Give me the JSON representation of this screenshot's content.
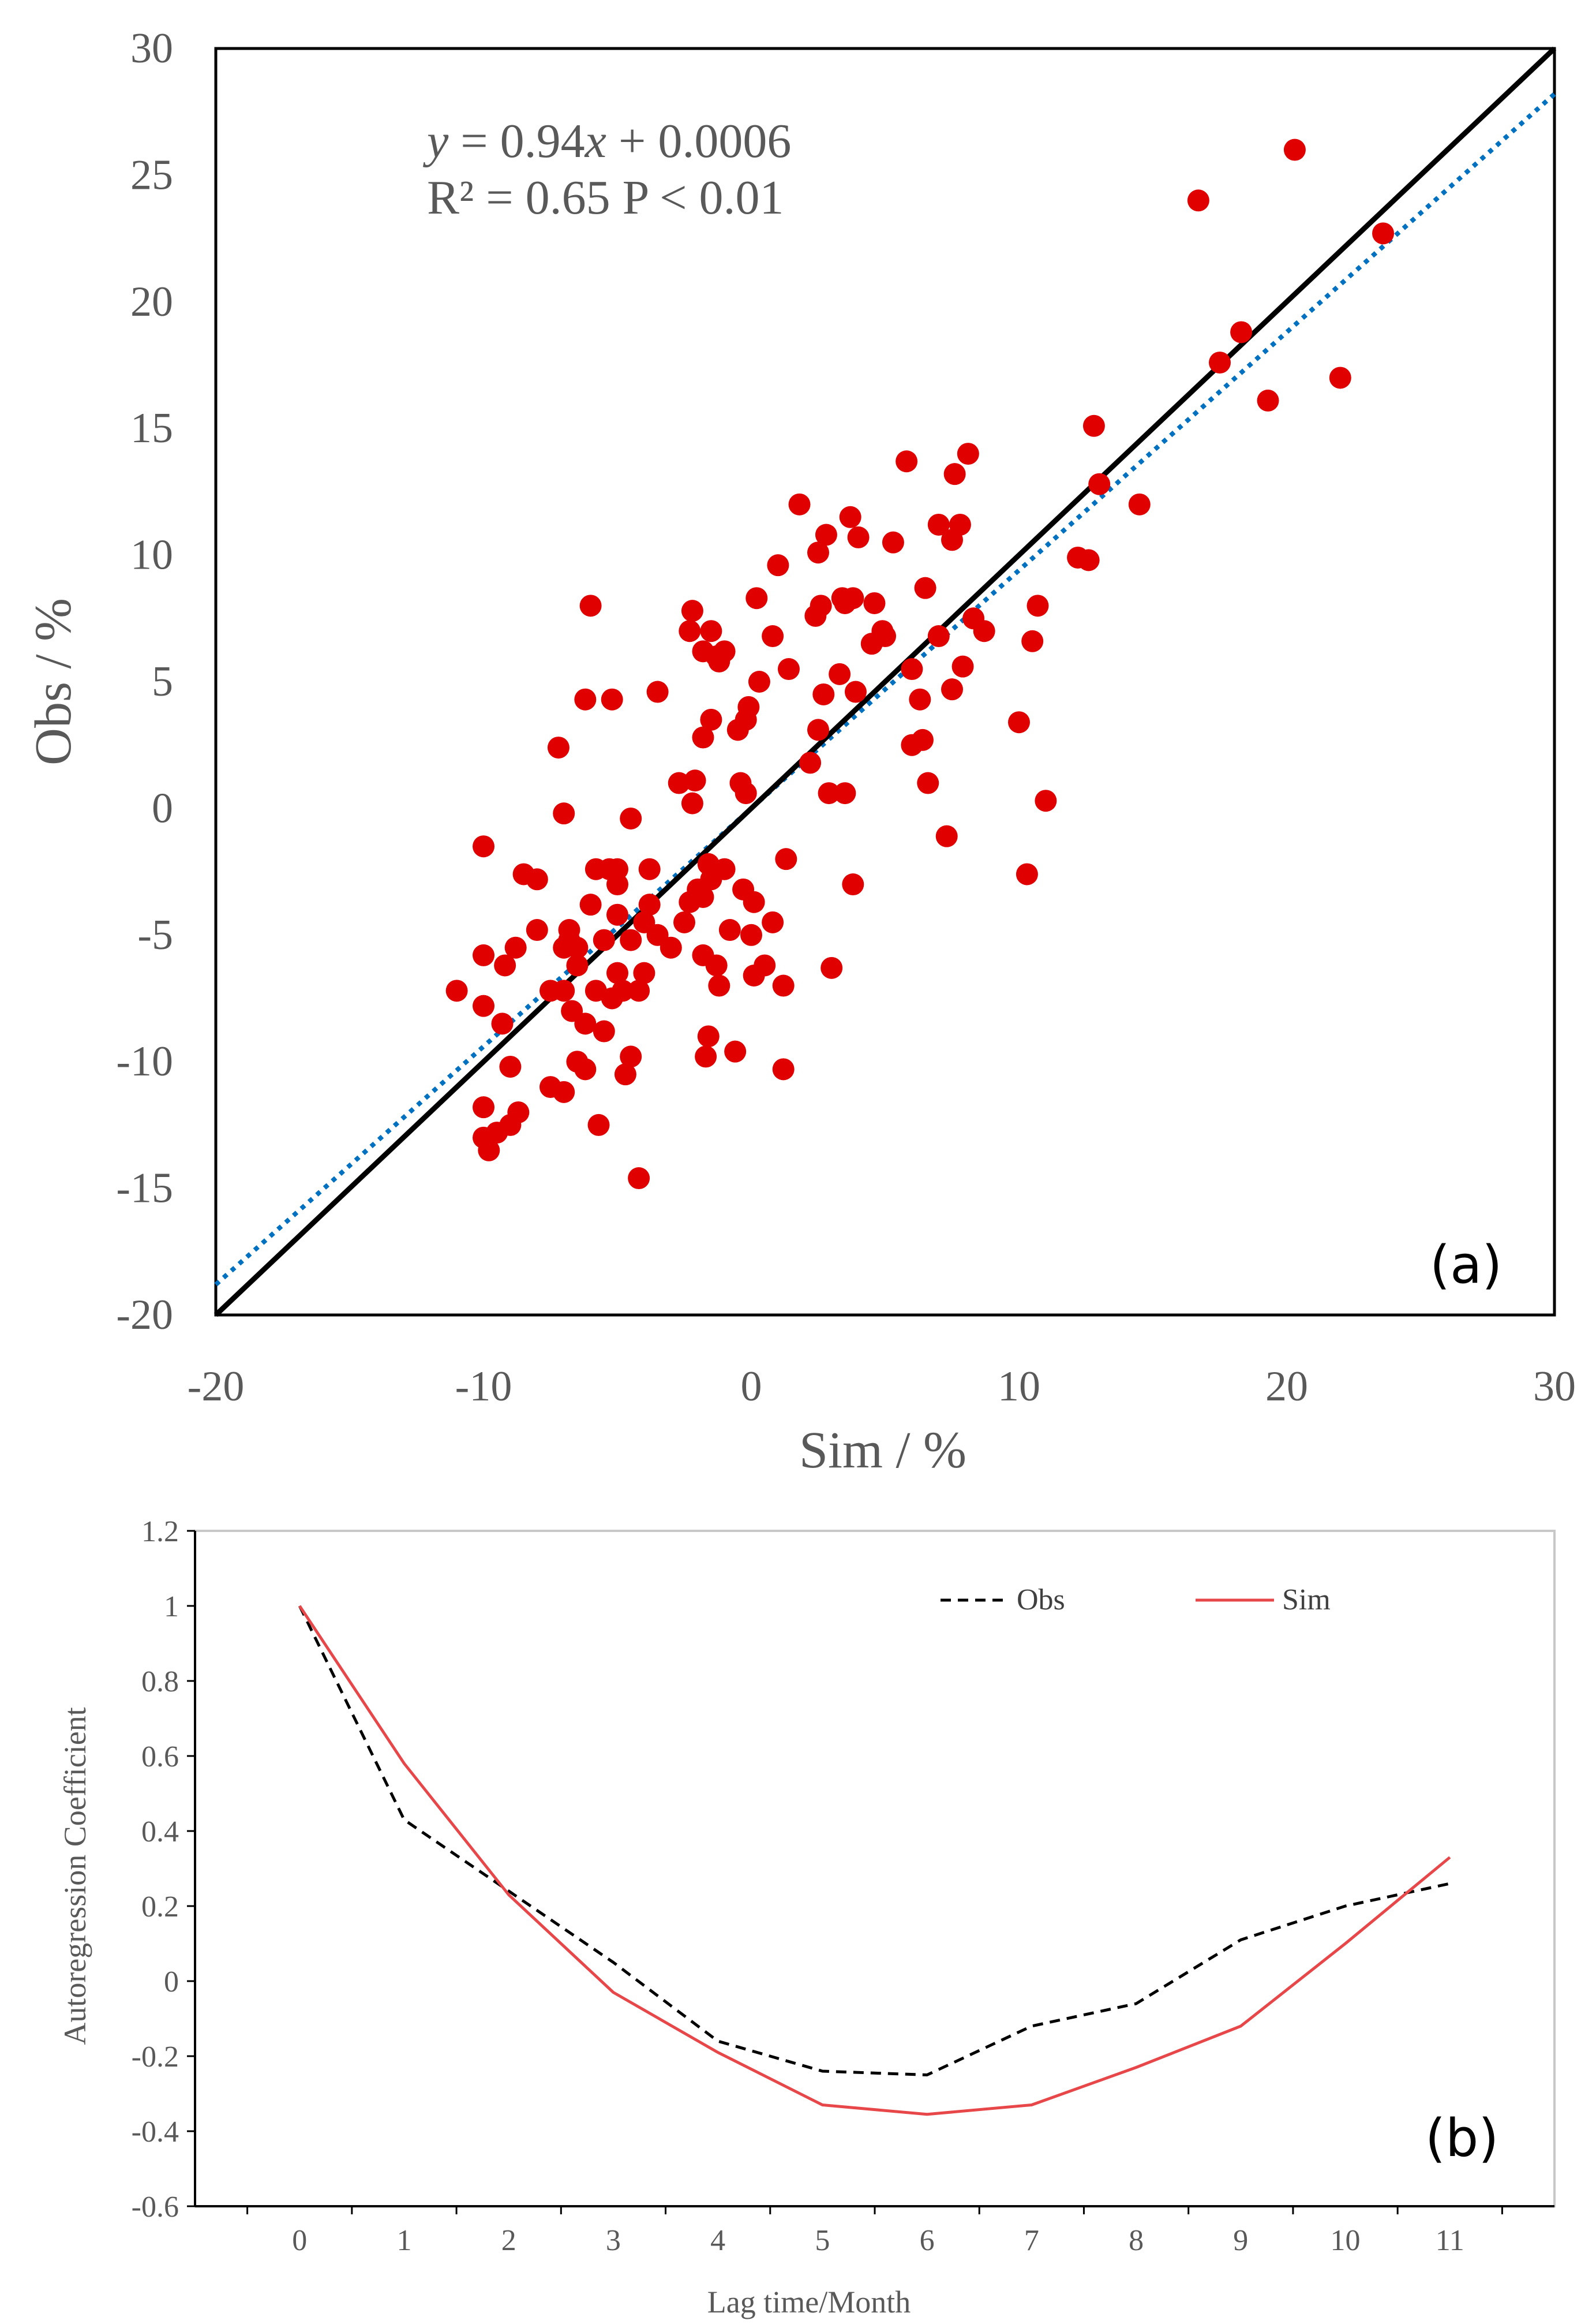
{
  "chart_data": [
    {
      "type": "scatter",
      "panel_label": "(a)",
      "xlabel": "Sim / %",
      "ylabel": "Obs / %",
      "xlim": [
        -20,
        30
      ],
      "ylim": [
        -20,
        30
      ],
      "xticks": [
        -20,
        -10,
        0,
        10,
        20,
        30
      ],
      "yticks": [
        -20,
        -15,
        -10,
        -5,
        0,
        5,
        10,
        15,
        20,
        25,
        30
      ],
      "xtick_labels": [
        "-20",
        "-10",
        "0",
        "10",
        "20",
        "30"
      ],
      "ytick_labels": [
        "-20",
        "-15",
        "-10",
        "-5",
        "0",
        "5",
        "10",
        "15",
        "20",
        "25",
        "30"
      ],
      "equation": "y = 0.94x + 0.0006",
      "equation_italic": "y",
      "equation_rest_1": " = 0.94",
      "equation_italic_x": "x",
      "equation_rest_2": " + 0.0006",
      "r2_text": "R² = 0.65  P < 0.01",
      "one_to_one_line": {
        "from": [
          -20,
          -20
        ],
        "to": [
          30,
          30
        ],
        "color": "#000000"
      },
      "fit_line": {
        "slope": 0.94,
        "intercept": 0.0006,
        "color": "#0070C0",
        "style": "dotted"
      },
      "point_color": "#E00000",
      "points": [
        [
          -11,
          -7.2
        ],
        [
          -10,
          -1.5
        ],
        [
          -10,
          -5.8
        ],
        [
          -10,
          -7.8
        ],
        [
          -10,
          -11.8
        ],
        [
          -10,
          -13
        ],
        [
          -9.8,
          -13.5
        ],
        [
          -9.5,
          -12.8
        ],
        [
          -9.3,
          -8.5
        ],
        [
          -9.2,
          -6.2
        ],
        [
          -9,
          -10.2
        ],
        [
          -9,
          -12.5
        ],
        [
          -8.8,
          -5.5
        ],
        [
          -8.7,
          -12
        ],
        [
          -8.5,
          -2.6
        ],
        [
          -8,
          -2.8
        ],
        [
          -8,
          -4.8
        ],
        [
          -7.5,
          -7.2
        ],
        [
          -7.5,
          -11
        ],
        [
          -7.2,
          2.4
        ],
        [
          -7,
          -0.2
        ],
        [
          -7,
          -5.5
        ],
        [
          -7,
          -7.2
        ],
        [
          -7,
          -11.2
        ],
        [
          -6.8,
          -4.8
        ],
        [
          -6.8,
          -5.2
        ],
        [
          -6.7,
          -8
        ],
        [
          -6.5,
          -10
        ],
        [
          -6.5,
          -6.2
        ],
        [
          -6.5,
          -5.5
        ],
        [
          -6.2,
          -8.5
        ],
        [
          -6.2,
          -10.3
        ],
        [
          -6.2,
          4.3
        ],
        [
          -6,
          8
        ],
        [
          -6,
          -3.8
        ],
        [
          -5.8,
          -2.4
        ],
        [
          -5.8,
          -7.2
        ],
        [
          -5.7,
          -12.5
        ],
        [
          -5.5,
          -8.8
        ],
        [
          -5.5,
          -5.2
        ],
        [
          -5.3,
          -2.4
        ],
        [
          -5.2,
          4.3
        ],
        [
          -5.2,
          -7.5
        ],
        [
          -5,
          -3
        ],
        [
          -5,
          -4.2
        ],
        [
          -5,
          -6.5
        ],
        [
          -5,
          -2.4
        ],
        [
          -4.8,
          -7.2
        ],
        [
          -4.7,
          -10.5
        ],
        [
          -4.5,
          -0.4
        ],
        [
          -4.5,
          -5.2
        ],
        [
          -4.5,
          -9.8
        ],
        [
          -4.2,
          -7.2
        ],
        [
          -4.2,
          -14.6
        ],
        [
          -4,
          -4.5
        ],
        [
          -4,
          -6.5
        ],
        [
          -3.8,
          -3.8
        ],
        [
          -3.8,
          -2.4
        ],
        [
          -3.5,
          -5
        ],
        [
          -3.5,
          4.6
        ],
        [
          -3,
          -5.5
        ],
        [
          -2.7,
          1
        ],
        [
          -2.5,
          -4.5
        ],
        [
          -2.3,
          7
        ],
        [
          -2.3,
          -3.7
        ],
        [
          -2.2,
          7.8
        ],
        [
          -2.2,
          0.2
        ],
        [
          -2.1,
          1.1
        ],
        [
          -2,
          -3.2
        ],
        [
          -1.8,
          -3.5
        ],
        [
          -1.8,
          6.2
        ],
        [
          -1.8,
          2.8
        ],
        [
          -1.8,
          -5.8
        ],
        [
          -1.7,
          -9.8
        ],
        [
          -1.6,
          -2.2
        ],
        [
          -1.6,
          -9
        ],
        [
          -1.5,
          7
        ],
        [
          -1.5,
          3.5
        ],
        [
          -1.5,
          -2.8
        ],
        [
          -1.3,
          6
        ],
        [
          -1.3,
          -6.2
        ],
        [
          -1.2,
          -7
        ],
        [
          -1.2,
          5.8
        ],
        [
          -1,
          6.2
        ],
        [
          -1,
          -2.4
        ],
        [
          -0.8,
          -4.8
        ],
        [
          -0.6,
          -9.6
        ],
        [
          -0.5,
          3.1
        ],
        [
          -0.4,
          1
        ],
        [
          -0.3,
          -3.2
        ],
        [
          -0.2,
          0.6
        ],
        [
          -0.2,
          3.5
        ],
        [
          -0.1,
          4
        ],
        [
          0,
          -5
        ],
        [
          0.1,
          -3.7
        ],
        [
          0.1,
          -6.6
        ],
        [
          0.2,
          8.3
        ],
        [
          0.3,
          5
        ],
        [
          0.5,
          -6.2
        ],
        [
          0.8,
          -4.5
        ],
        [
          0.8,
          6.8
        ],
        [
          1,
          9.6
        ],
        [
          1.2,
          -7
        ],
        [
          1.2,
          -10.3
        ],
        [
          1.3,
          -2
        ],
        [
          1.4,
          5.5
        ],
        [
          1.8,
          12
        ],
        [
          2.2,
          1.8
        ],
        [
          2.4,
          7.6
        ],
        [
          2.5,
          3.1
        ],
        [
          2.5,
          10.1
        ],
        [
          2.6,
          8
        ],
        [
          2.7,
          4.5
        ],
        [
          2.8,
          10.8
        ],
        [
          2.9,
          0.6
        ],
        [
          3,
          -6.3
        ],
        [
          3.3,
          5.3
        ],
        [
          3.4,
          8.3
        ],
        [
          3.5,
          0.6
        ],
        [
          3.5,
          8.1
        ],
        [
          3.7,
          11.5
        ],
        [
          3.8,
          -3
        ],
        [
          3.8,
          8.3
        ],
        [
          3.9,
          4.6
        ],
        [
          4,
          10.7
        ],
        [
          4.5,
          6.5
        ],
        [
          4.6,
          8.1
        ],
        [
          4.9,
          7
        ],
        [
          5,
          6.8
        ],
        [
          5.3,
          10.5
        ],
        [
          5.8,
          13.7
        ],
        [
          6,
          2.5
        ],
        [
          6,
          5.5
        ],
        [
          6.3,
          4.3
        ],
        [
          6.4,
          2.7
        ],
        [
          6.5,
          8.7
        ],
        [
          6.6,
          1
        ],
        [
          7,
          6.8
        ],
        [
          7,
          11.2
        ],
        [
          7.3,
          -1.1
        ],
        [
          7.5,
          4.7
        ],
        [
          7.5,
          10.6
        ],
        [
          7.6,
          13.2
        ],
        [
          7.8,
          11.2
        ],
        [
          7.9,
          5.6
        ],
        [
          8.1,
          14
        ],
        [
          8.3,
          7.5
        ],
        [
          8.7,
          7
        ],
        [
          10,
          3.4
        ],
        [
          10.3,
          -2.6
        ],
        [
          10.5,
          6.6
        ],
        [
          10.7,
          8
        ],
        [
          11,
          0.3
        ],
        [
          12.2,
          9.9
        ],
        [
          12.6,
          9.8
        ],
        [
          12.8,
          15.1
        ],
        [
          13,
          12.8
        ],
        [
          14.5,
          12
        ],
        [
          16.7,
          24
        ],
        [
          17.5,
          17.6
        ],
        [
          18.3,
          18.8
        ],
        [
          19.3,
          16.1
        ],
        [
          20.3,
          26
        ],
        [
          22,
          17
        ],
        [
          23.6,
          22.7
        ]
      ]
    },
    {
      "type": "line",
      "panel_label": "(b)",
      "xlabel": "Lag time/Month",
      "ylabel": "Autoregression Coefficient",
      "x": [
        0,
        1,
        2,
        3,
        4,
        5,
        6,
        7,
        8,
        9,
        10,
        11
      ],
      "xlim": [
        -1,
        12
      ],
      "ylim": [
        -0.6,
        1.2
      ],
      "xtick_labels": [
        "0",
        "1",
        "2",
        "3",
        "4",
        "5",
        "6",
        "7",
        "8",
        "9",
        "10",
        "11"
      ],
      "yticks": [
        -0.6,
        -0.4,
        -0.2,
        0,
        0.2,
        0.4,
        0.6,
        0.8,
        1,
        1.2
      ],
      "ytick_labels": [
        "-0.6",
        "-0.4",
        "-0.2",
        "0",
        "0.2",
        "0.4",
        "0.6",
        "0.8",
        "1",
        "1.2"
      ],
      "legend_position": "top-right",
      "series": [
        {
          "name": "Obs",
          "color": "#000000",
          "style": "dashed",
          "values": [
            1.0,
            0.43,
            0.24,
            0.05,
            -0.16,
            -0.24,
            -0.25,
            -0.12,
            -0.06,
            0.11,
            0.2,
            0.26
          ]
        },
        {
          "name": "Sim",
          "color": "#E8474A",
          "style": "solid",
          "values": [
            1.0,
            0.58,
            0.23,
            -0.03,
            -0.19,
            -0.33,
            -0.355,
            -0.33,
            -0.23,
            -0.12,
            0.1,
            0.33
          ]
        }
      ]
    }
  ]
}
